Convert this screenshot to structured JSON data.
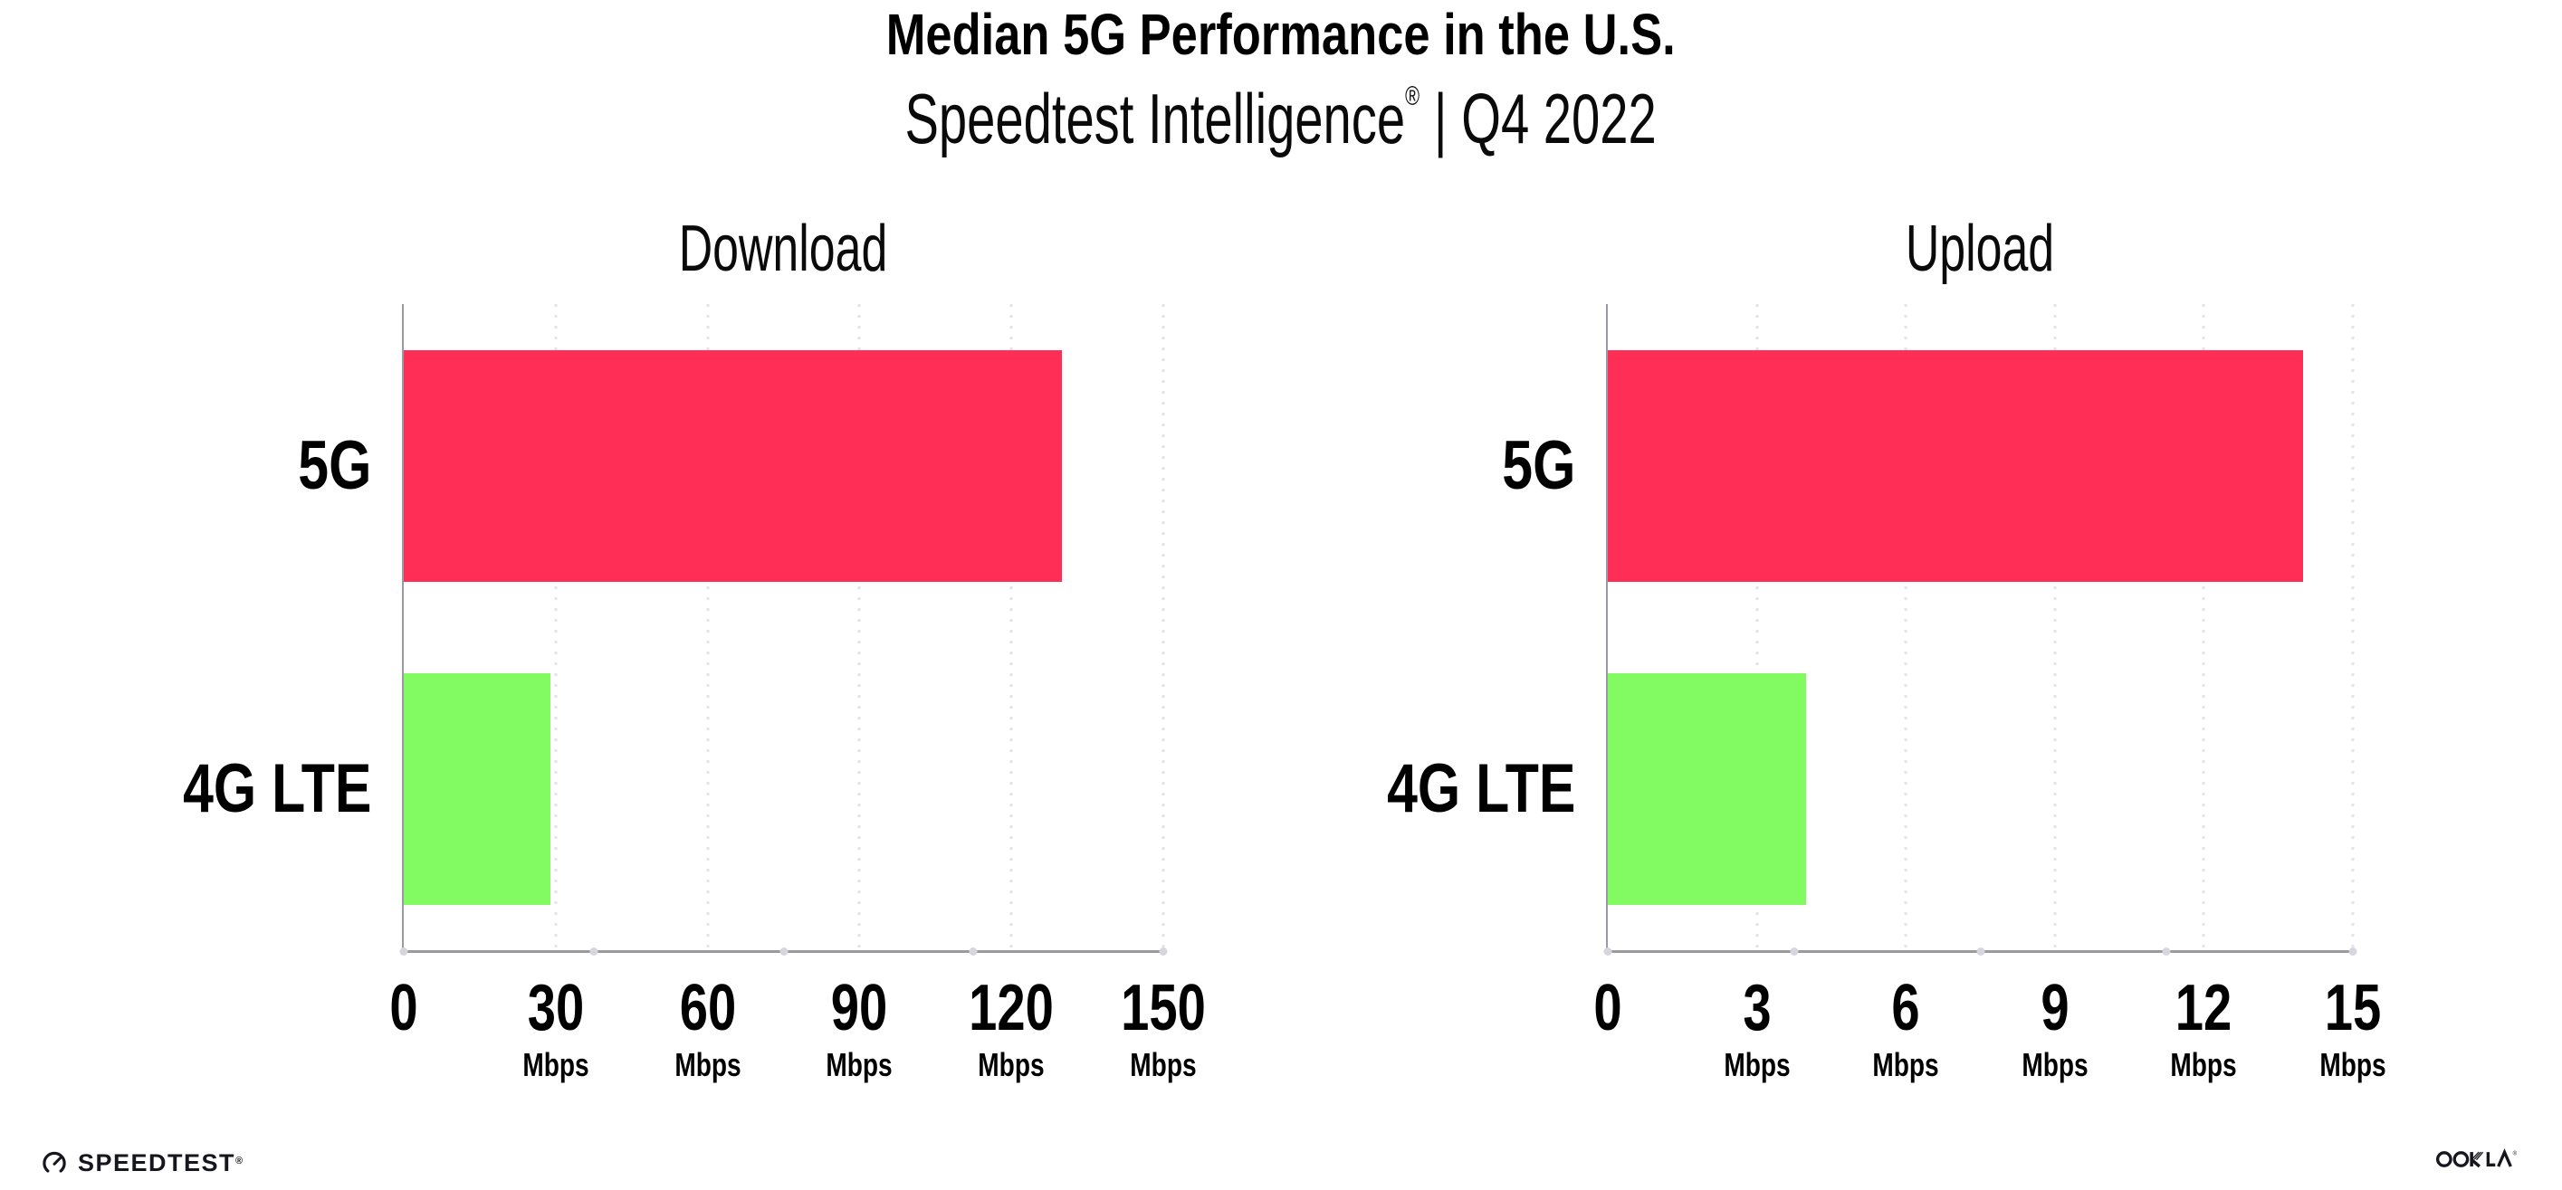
{
  "header": {
    "title": "Median 5G Performance in the U.S.",
    "subtitle_brand": "Speedtest Intelligence",
    "subtitle_reg": "®",
    "subtitle_separator": "|",
    "subtitle_period": "Q4 2022"
  },
  "colors": {
    "bar_5g": "#FF2E56",
    "bar_4g_lte": "#82FB63",
    "axis": "#9A9AA0",
    "gridline": "#E3E3EB",
    "axis_tick_dot": "#D6D6DE",
    "text": "#000000",
    "logo": "#16161E"
  },
  "chart_data": [
    {
      "type": "bar",
      "orientation": "horizontal",
      "title": "Download",
      "categories": [
        "5G",
        "4G LTE"
      ],
      "values": [
        130,
        29
      ],
      "bar_colors": [
        "#FF2E56",
        "#82FB63"
      ],
      "xlim": [
        0,
        150
      ],
      "xticks": [
        0,
        30,
        60,
        90,
        120,
        150
      ],
      "tick_unit_label": "Mbps",
      "grid": "dotted-vertical",
      "legend": "none"
    },
    {
      "type": "bar",
      "orientation": "horizontal",
      "title": "Upload",
      "categories": [
        "5G",
        "4G LTE"
      ],
      "values": [
        14,
        4
      ],
      "bar_colors": [
        "#FF2E56",
        "#82FB63"
      ],
      "xlim": [
        0,
        15
      ],
      "xticks": [
        0,
        3,
        6,
        9,
        12,
        15
      ],
      "tick_unit_label": "Mbps",
      "grid": "dotted-vertical",
      "legend": "none"
    }
  ],
  "footer": {
    "speedtest_label": "SPEEDTEST",
    "speedtest_reg": "®",
    "speedtest_icon": "speedtest-gauge-icon",
    "ookla_label": "OOKLA",
    "ookla_reg": "®"
  }
}
